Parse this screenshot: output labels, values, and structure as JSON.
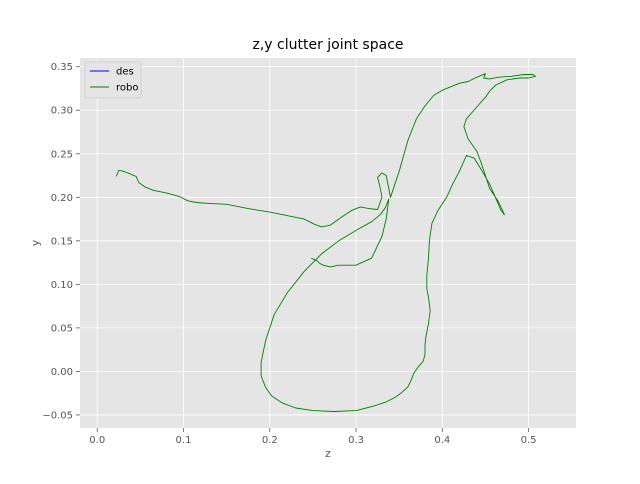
{
  "chart_data": {
    "type": "line",
    "title": "z,y clutter joint space",
    "xlabel": "z",
    "ylabel": "y",
    "xlim": [
      -0.02,
      0.555
    ],
    "ylim": [
      -0.065,
      0.36
    ],
    "xticks": [
      0.0,
      0.1,
      0.2,
      0.3,
      0.4,
      0.5
    ],
    "xtick_labels": [
      "0.0",
      "0.1",
      "0.2",
      "0.3",
      "0.4",
      "0.5"
    ],
    "yticks": [
      -0.05,
      0.0,
      0.05,
      0.1,
      0.15,
      0.2,
      0.25,
      0.3,
      0.35
    ],
    "ytick_labels": [
      "−0.05",
      "0.00",
      "0.05",
      "0.10",
      "0.15",
      "0.20",
      "0.25",
      "0.30",
      "0.35"
    ],
    "grid": true,
    "legend_position": "top-left",
    "background": "#e5e5e5",
    "series": [
      {
        "name": "des",
        "color": "#0000ff",
        "x": [],
        "y": []
      },
      {
        "name": "robo",
        "color": "#008000",
        "x": [
          0.022,
          0.025,
          0.03,
          0.038,
          0.045,
          0.048,
          0.055,
          0.065,
          0.08,
          0.095,
          0.105,
          0.115,
          0.13,
          0.15,
          0.175,
          0.2,
          0.225,
          0.24,
          0.252,
          0.26,
          0.27,
          0.283,
          0.295,
          0.305,
          0.315,
          0.325,
          0.33,
          0.328,
          0.325,
          0.33,
          0.335,
          0.338,
          0.34,
          0.35,
          0.36,
          0.37,
          0.38,
          0.39,
          0.4,
          0.41,
          0.42,
          0.43,
          0.438,
          0.445,
          0.45,
          0.448,
          0.455,
          0.465,
          0.48,
          0.495,
          0.505,
          0.508,
          0.5,
          0.49,
          0.475,
          0.462,
          0.455,
          0.45,
          0.442,
          0.428,
          0.425,
          0.43,
          0.44,
          0.445,
          0.45,
          0.455,
          0.465,
          0.472,
          0.468,
          0.455,
          0.445,
          0.437,
          0.428,
          0.42,
          0.412,
          0.405,
          0.395,
          0.388,
          0.385,
          0.384,
          0.382,
          0.382,
          0.384,
          0.386,
          0.384,
          0.381,
          0.38,
          0.38,
          0.378,
          0.372,
          0.367,
          0.364,
          0.36,
          0.352,
          0.345,
          0.335,
          0.32,
          0.3,
          0.275,
          0.25,
          0.23,
          0.214,
          0.202,
          0.195,
          0.19,
          0.19,
          0.195,
          0.205,
          0.22,
          0.24,
          0.26,
          0.28,
          0.3,
          0.318,
          0.328,
          0.334,
          0.338,
          0.335,
          0.33,
          0.318,
          0.3,
          0.28,
          0.27,
          0.262,
          0.258,
          0.255,
          0.248
        ],
        "y": [
          0.224,
          0.231,
          0.23,
          0.227,
          0.224,
          0.217,
          0.212,
          0.208,
          0.205,
          0.201,
          0.196,
          0.194,
          0.193,
          0.192,
          0.187,
          0.183,
          0.178,
          0.175,
          0.169,
          0.166,
          0.168,
          0.177,
          0.185,
          0.189,
          0.187,
          0.186,
          0.2,
          0.211,
          0.223,
          0.228,
          0.225,
          0.21,
          0.2,
          0.23,
          0.265,
          0.29,
          0.305,
          0.317,
          0.323,
          0.327,
          0.331,
          0.333,
          0.337,
          0.34,
          0.342,
          0.337,
          0.336,
          0.338,
          0.339,
          0.341,
          0.341,
          0.339,
          0.337,
          0.337,
          0.335,
          0.329,
          0.322,
          0.315,
          0.306,
          0.29,
          0.281,
          0.267,
          0.253,
          0.24,
          0.225,
          0.21,
          0.195,
          0.18,
          0.185,
          0.215,
          0.232,
          0.245,
          0.248,
          0.23,
          0.215,
          0.2,
          0.185,
          0.17,
          0.15,
          0.13,
          0.11,
          0.095,
          0.085,
          0.07,
          0.055,
          0.04,
          0.03,
          0.02,
          0.012,
          0.005,
          -0.002,
          -0.01,
          -0.018,
          -0.025,
          -0.03,
          -0.035,
          -0.04,
          -0.045,
          -0.046,
          -0.045,
          -0.042,
          -0.036,
          -0.028,
          -0.018,
          -0.005,
          0.01,
          0.035,
          0.065,
          0.09,
          0.115,
          0.135,
          0.15,
          0.162,
          0.172,
          0.18,
          0.188,
          0.198,
          0.175,
          0.155,
          0.13,
          0.122,
          0.122,
          0.12,
          0.122,
          0.124,
          0.127,
          0.13
        ]
      }
    ]
  }
}
